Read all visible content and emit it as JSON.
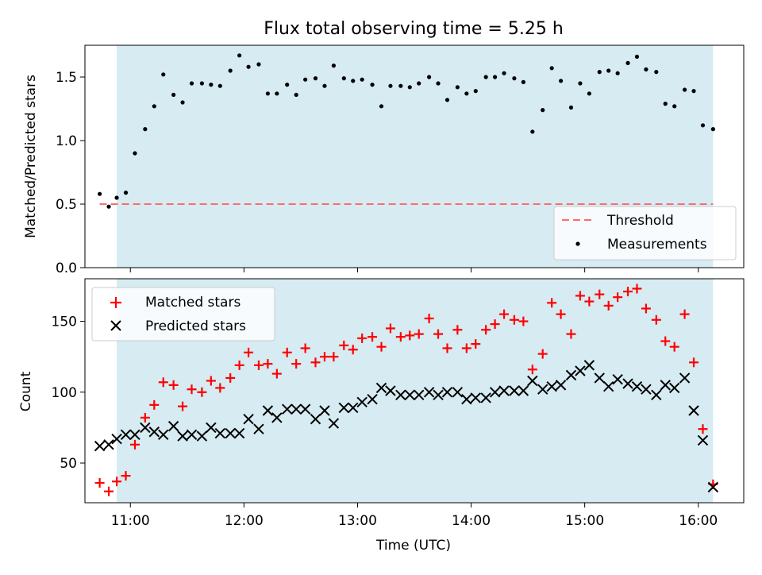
{
  "figure": {
    "title": "Flux total observing time = 5.25 h",
    "xlabel": "Time (UTC)",
    "x_ticks": [
      "11:00",
      "12:00",
      "13:00",
      "14:00",
      "15:00",
      "16:00"
    ],
    "x_tick_hours": [
      11,
      12,
      13,
      14,
      15,
      16
    ],
    "xlim_hours": [
      10.6,
      16.4
    ],
    "observing_window_hours": [
      10.88,
      16.13
    ],
    "colors": {
      "window": "#add8e6",
      "threshold": "#ff6b6b",
      "matched": "#ff0000",
      "predicted": "#000000",
      "measurements": "#000000"
    }
  },
  "chart_data": [
    {
      "type": "scatter",
      "panel": "top",
      "ylabel": "Matched/Predicted stars",
      "ylim": [
        0,
        1.75
      ],
      "y_ticks": [
        "0.0",
        "0.5",
        "1.0",
        "1.5"
      ],
      "y_tick_values": [
        0,
        0.5,
        1.0,
        1.5
      ],
      "legend": {
        "placement": "lower-right",
        "entries": [
          "Threshold",
          "Measurements"
        ]
      },
      "threshold": {
        "name": "Threshold",
        "value": 0.5,
        "x_range_hours": [
          10.73,
          16.13
        ]
      },
      "series": [
        {
          "name": "Measurements",
          "x_hours": [
            10.73,
            10.81,
            10.88,
            10.96,
            11.04,
            11.13,
            11.21,
            11.29,
            11.38,
            11.46,
            11.54,
            11.63,
            11.71,
            11.79,
            11.88,
            11.96,
            12.04,
            12.13,
            12.21,
            12.29,
            12.38,
            12.46,
            12.54,
            12.63,
            12.71,
            12.79,
            12.88,
            12.96,
            13.04,
            13.13,
            13.21,
            13.29,
            13.38,
            13.46,
            13.54,
            13.63,
            13.71,
            13.79,
            13.88,
            13.96,
            14.04,
            14.13,
            14.21,
            14.29,
            14.38,
            14.46,
            14.54,
            14.63,
            14.71,
            14.79,
            14.88,
            14.96,
            15.04,
            15.13,
            15.21,
            15.29,
            15.38,
            15.46,
            15.54,
            15.63,
            15.71,
            15.79,
            15.88,
            15.96,
            16.04,
            16.13
          ],
          "y": [
            0.58,
            0.48,
            0.55,
            0.59,
            0.9,
            1.09,
            1.27,
            1.52,
            1.36,
            1.3,
            1.45,
            1.45,
            1.44,
            1.43,
            1.55,
            1.67,
            1.58,
            1.6,
            1.37,
            1.37,
            1.44,
            1.36,
            1.48,
            1.49,
            1.43,
            1.59,
            1.49,
            1.47,
            1.48,
            1.44,
            1.27,
            1.43,
            1.43,
            1.42,
            1.45,
            1.5,
            1.45,
            1.32,
            1.42,
            1.37,
            1.39,
            1.5,
            1.5,
            1.53,
            1.49,
            1.46,
            1.07,
            1.24,
            1.57,
            1.47,
            1.26,
            1.45,
            1.37,
            1.54,
            1.55,
            1.53,
            1.61,
            1.66,
            1.56,
            1.54,
            1.29,
            1.27,
            1.4,
            1.39,
            1.12,
            1.09
          ]
        }
      ]
    },
    {
      "type": "scatter",
      "panel": "bottom",
      "ylabel": "Count",
      "ylim": [
        22,
        180
      ],
      "y_ticks": [
        "50",
        "100",
        "150"
      ],
      "y_tick_values": [
        50,
        100,
        150
      ],
      "legend": {
        "placement": "top-left",
        "entries": [
          "Matched stars",
          "Predicted stars"
        ]
      },
      "series": [
        {
          "name": "Matched stars",
          "marker": "plus",
          "x_hours": [
            10.73,
            10.81,
            10.88,
            10.96,
            11.04,
            11.13,
            11.21,
            11.29,
            11.38,
            11.46,
            11.54,
            11.63,
            11.71,
            11.79,
            11.88,
            11.96,
            12.04,
            12.13,
            12.21,
            12.29,
            12.38,
            12.46,
            12.54,
            12.63,
            12.71,
            12.79,
            12.88,
            12.96,
            13.04,
            13.13,
            13.21,
            13.29,
            13.38,
            13.46,
            13.54,
            13.63,
            13.71,
            13.79,
            13.88,
            13.96,
            14.04,
            14.13,
            14.21,
            14.29,
            14.38,
            14.46,
            14.54,
            14.63,
            14.71,
            14.79,
            14.88,
            14.96,
            15.04,
            15.13,
            15.21,
            15.29,
            15.38,
            15.46,
            15.54,
            15.63,
            15.71,
            15.79,
            15.88,
            15.96,
            16.04,
            16.13
          ],
          "y": [
            36,
            30,
            37,
            41,
            63,
            82,
            91,
            107,
            105,
            90,
            102,
            100,
            108,
            103,
            110,
            119,
            128,
            119,
            120,
            113,
            128,
            120,
            131,
            121,
            125,
            125,
            133,
            130,
            138,
            139,
            132,
            145,
            139,
            140,
            141,
            152,
            141,
            131,
            144,
            131,
            134,
            144,
            148,
            155,
            151,
            150,
            116,
            127,
            163,
            155,
            141,
            168,
            164,
            169,
            161,
            167,
            171,
            173,
            159,
            151,
            136,
            132,
            155,
            121,
            74,
            35
          ]
        },
        {
          "name": "Predicted stars",
          "marker": "x",
          "x_hours": [
            10.73,
            10.81,
            10.88,
            10.96,
            11.04,
            11.13,
            11.21,
            11.29,
            11.38,
            11.46,
            11.54,
            11.63,
            11.71,
            11.79,
            11.88,
            11.96,
            12.04,
            12.13,
            12.21,
            12.29,
            12.38,
            12.46,
            12.54,
            12.63,
            12.71,
            12.79,
            12.88,
            12.96,
            13.04,
            13.13,
            13.21,
            13.29,
            13.38,
            13.46,
            13.54,
            13.63,
            13.71,
            13.79,
            13.88,
            13.96,
            14.04,
            14.13,
            14.21,
            14.29,
            14.38,
            14.46,
            14.54,
            14.63,
            14.71,
            14.79,
            14.88,
            14.96,
            15.04,
            15.13,
            15.21,
            15.29,
            15.38,
            15.46,
            15.54,
            15.63,
            15.71,
            15.79,
            15.88,
            15.96,
            16.04,
            16.13
          ],
          "y": [
            62,
            63,
            67,
            70,
            70,
            75,
            72,
            70,
            76,
            69,
            70,
            69,
            75,
            71,
            71,
            71,
            81,
            74,
            87,
            82,
            88,
            88,
            88,
            81,
            87,
            78,
            89,
            89,
            93,
            95,
            103,
            101,
            98,
            98,
            98,
            100,
            98,
            100,
            100,
            95,
            96,
            96,
            100,
            101,
            101,
            101,
            108,
            102,
            104,
            105,
            112,
            115,
            119,
            110,
            104,
            109,
            106,
            104,
            102,
            98,
            105,
            103,
            110,
            87,
            66,
            33
          ]
        }
      ]
    }
  ]
}
